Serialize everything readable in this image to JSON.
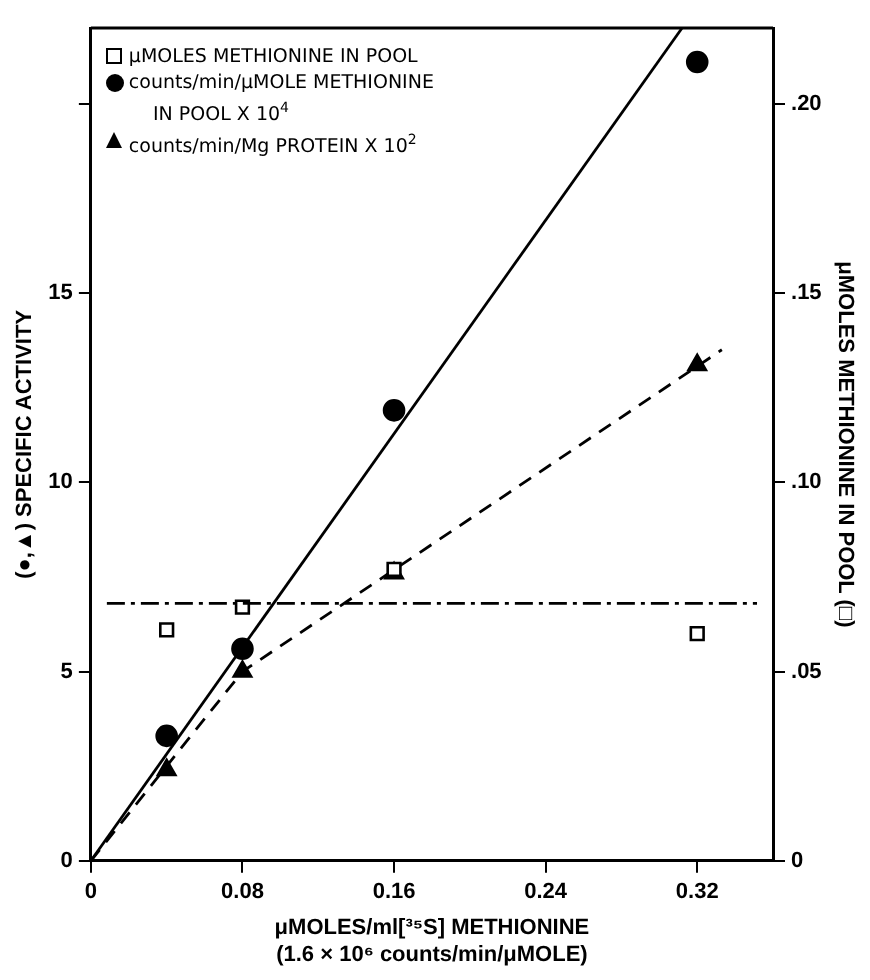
{
  "chart_data": {
    "type": "scatter",
    "xlabel": "μMOLES/ml[³⁵S] METHIONINE\n(1.6 × 10⁶ counts/min/μMOLE)",
    "ylabel": "(●,▲) SPECIFIC ACTIVITY",
    "y2label": "μMOLES METHIONINE IN POOL (□)",
    "xlim": [
      0,
      0.36
    ],
    "xticks": [
      0,
      0.08,
      0.16,
      0.24,
      0.32
    ],
    "ylim": [
      0,
      22
    ],
    "yticks": [
      0,
      5,
      10,
      15,
      {
        "value": 20,
        "label": null
      }
    ],
    "y2lim": [
      0,
      0.22
    ],
    "y2ticks": [
      0,
      {
        "value": 0.05,
        "label": ".05"
      },
      {
        "value": 0.1,
        "label": ".10"
      },
      {
        "value": 0.15,
        "label": ".15"
      },
      {
        "value": 0.2,
        "label": ".20"
      }
    ],
    "legend": "top left",
    "grid": false,
    "ref_lines": [
      {
        "axis": "y2",
        "value": 0.068,
        "line_style": "dashdot",
        "color": "#000000"
      }
    ],
    "series": [
      {
        "type": "scatter",
        "name": "μMOLES METHIONINE IN POOL",
        "marker": "square",
        "color": "#000000",
        "axis": "y2",
        "x": [
          0.04,
          0.08,
          0.16,
          0.32
        ],
        "values": [
          0.061,
          0.067,
          0.077,
          0.06
        ]
      },
      {
        "type": "scatter",
        "name": "counts/min/μMOLE METHIONINE\nIN POOL X 10$^{4}$",
        "marker": "circle",
        "color": "#000000",
        "x": [
          0.04,
          0.08,
          0.16,
          0.32
        ],
        "values": [
          3.3,
          5.6,
          11.9,
          21.1
        ]
      },
      {
        "type": "scatter",
        "name": "counts/min/Mg PROTEIN X 10$^{2}$",
        "marker": "triangle",
        "color": "#000000",
        "x": [
          0.04,
          0.08,
          0.16,
          0.32
        ],
        "values": [
          2.4,
          5.0,
          7.6,
          13.1
        ]
      },
      {
        "type": "line",
        "line_style": "solid",
        "color": "#000000",
        "x": [
          0,
          0.312
        ],
        "values": [
          0,
          22
        ]
      },
      {
        "type": "line",
        "line_style": "dashed",
        "color": "#000000",
        "x": [
          0,
          0.08,
          0.333
        ],
        "values": [
          0,
          5.0,
          13.5
        ]
      }
    ]
  }
}
